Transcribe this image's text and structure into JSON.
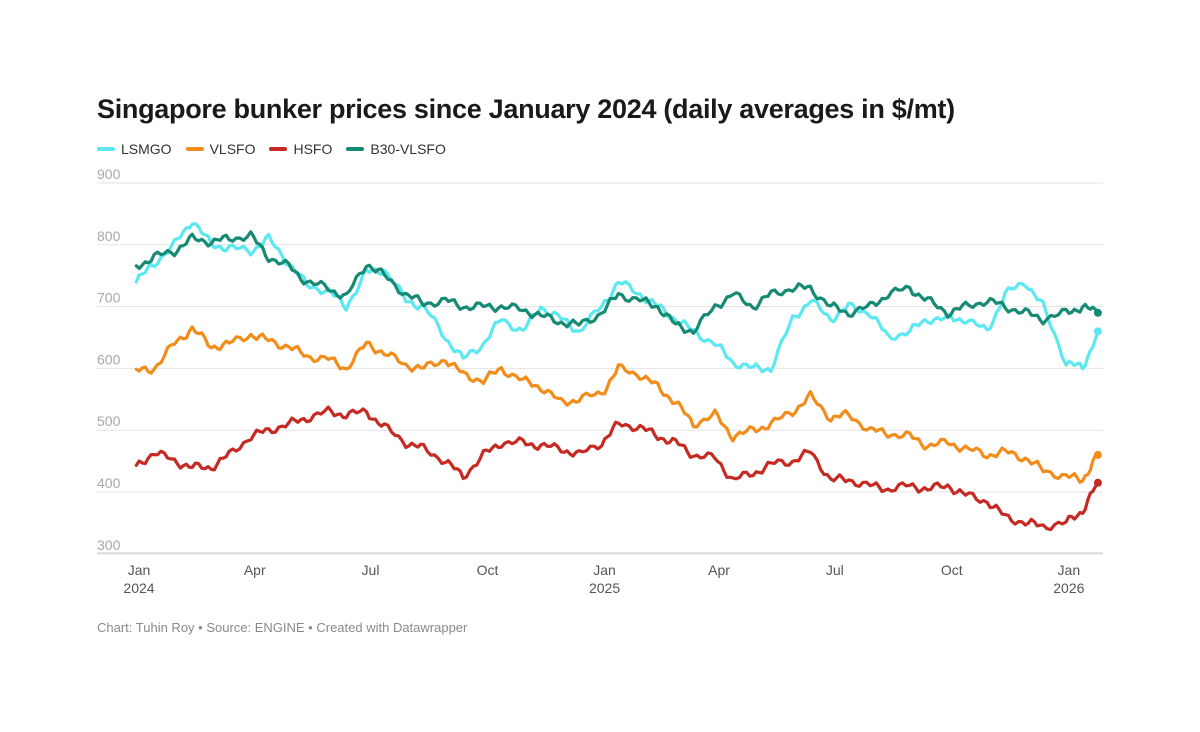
{
  "title": "Singapore bunker prices since January 2024 (daily averages in $/mt)",
  "footer": "Chart: Tuhin Roy • Source: ENGINE • Created with Datawrapper",
  "chart_data": {
    "type": "line",
    "title": "Singapore bunker prices since January 2024 (daily averages in $/mt)",
    "xlabel": "",
    "ylabel": "",
    "ylim": [
      290,
      900
    ],
    "grid": true,
    "legend_position": "top-left",
    "y_ticks": [
      900,
      800,
      700,
      600,
      500,
      400,
      300
    ],
    "x_ticks": [
      {
        "date": "2024-01-01",
        "label": "Jan",
        "sublabel": "2024"
      },
      {
        "date": "2024-04-01",
        "label": "Apr",
        "sublabel": ""
      },
      {
        "date": "2024-07-01",
        "label": "Jul",
        "sublabel": ""
      },
      {
        "date": "2024-10-01",
        "label": "Oct",
        "sublabel": ""
      },
      {
        "date": "2025-01-01",
        "label": "Jan",
        "sublabel": "2025"
      },
      {
        "date": "2025-04-01",
        "label": "Apr",
        "sublabel": ""
      },
      {
        "date": "2025-07-01",
        "label": "Jul",
        "sublabel": ""
      },
      {
        "date": "2025-10-01",
        "label": "Oct",
        "sublabel": ""
      },
      {
        "date": "2026-01-01",
        "label": "Jan",
        "sublabel": "2026"
      }
    ],
    "x": [
      "2024-01-02",
      "2024-01-16",
      "2024-02-01",
      "2024-02-15",
      "2024-03-01",
      "2024-03-15",
      "2024-04-01",
      "2024-04-15",
      "2024-05-01",
      "2024-05-15",
      "2024-06-01",
      "2024-06-15",
      "2024-07-01",
      "2024-07-15",
      "2024-08-01",
      "2024-08-15",
      "2024-09-01",
      "2024-09-15",
      "2024-10-01",
      "2024-10-15",
      "2024-11-01",
      "2024-11-15",
      "2024-12-01",
      "2024-12-15",
      "2025-01-02",
      "2025-01-15",
      "2025-02-01",
      "2025-02-15",
      "2025-03-01",
      "2025-03-15",
      "2025-04-01",
      "2025-04-15",
      "2025-05-01",
      "2025-05-15",
      "2025-06-01",
      "2025-06-15",
      "2025-07-01",
      "2025-07-15",
      "2025-08-01",
      "2025-08-15",
      "2025-09-01",
      "2025-09-15",
      "2025-10-01",
      "2025-10-15",
      "2025-11-01",
      "2025-11-15",
      "2025-12-01",
      "2025-12-15",
      "2026-01-02",
      "2026-01-15",
      "2026-01-27"
    ],
    "series": [
      {
        "name": "LSMGO",
        "color": "#5ce8f0",
        "values": [
          740,
          770,
          800,
          840,
          800,
          795,
          790,
          810,
          770,
          735,
          725,
          700,
          755,
          760,
          710,
          700,
          650,
          615,
          640,
          680,
          660,
          700,
          680,
          660,
          700,
          740,
          720,
          700,
          680,
          660,
          640,
          610,
          600,
          600,
          680,
          710,
          680,
          700,
          690,
          650,
          660,
          680,
          680,
          680,
          660,
          720,
          740,
          700,
          610,
          600,
          660
        ]
      },
      {
        "name": "VLSFO",
        "color": "#f28c1a",
        "values": [
          595,
          600,
          640,
          665,
          635,
          640,
          655,
          645,
          635,
          620,
          615,
          600,
          640,
          625,
          605,
          600,
          615,
          590,
          580,
          600,
          580,
          570,
          545,
          550,
          560,
          600,
          590,
          570,
          545,
          510,
          525,
          490,
          500,
          510,
          530,
          555,
          520,
          525,
          500,
          495,
          490,
          475,
          480,
          470,
          460,
          465,
          455,
          435,
          425,
          420,
          460
        ]
      },
      {
        "name": "HSFO",
        "color": "#c52a23",
        "values": [
          440,
          465,
          450,
          440,
          440,
          460,
          490,
          500,
          510,
          520,
          530,
          525,
          530,
          505,
          480,
          470,
          450,
          425,
          460,
          480,
          480,
          475,
          470,
          460,
          480,
          510,
          505,
          490,
          480,
          460,
          455,
          420,
          430,
          445,
          450,
          465,
          420,
          420,
          410,
          405,
          410,
          405,
          410,
          395,
          385,
          360,
          350,
          345,
          350,
          370,
          415
        ]
      },
      {
        "name": "B30-VLSFO",
        "color": "#178a73",
        "values": [
          765,
          780,
          790,
          810,
          805,
          810,
          815,
          780,
          765,
          740,
          730,
          715,
          770,
          750,
          720,
          705,
          710,
          700,
          700,
          700,
          695,
          685,
          675,
          670,
          690,
          720,
          710,
          700,
          670,
          660,
          700,
          720,
          700,
          720,
          730,
          730,
          700,
          690,
          700,
          720,
          730,
          710,
          690,
          700,
          710,
          700,
          690,
          680,
          690,
          700,
          690
        ]
      }
    ]
  }
}
